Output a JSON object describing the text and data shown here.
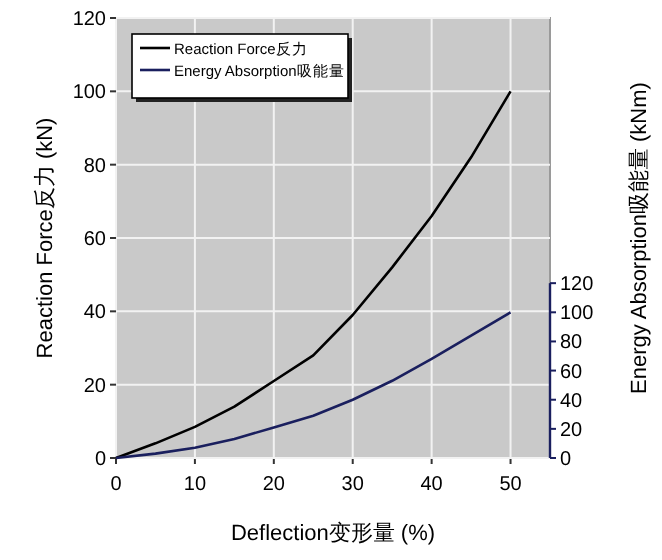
{
  "chart_data": {
    "type": "line",
    "xlabel": "Deflection变形量 (%)",
    "ylabel": "Reaction Force反力 (kN)",
    "y2label": "Energy Absorption吸能量 (kNm)",
    "x": [
      0,
      5,
      10,
      15,
      20,
      25,
      30,
      35,
      40,
      45,
      50
    ],
    "series": [
      {
        "name": "Reaction Force反力",
        "color": "#000000",
        "values": [
          0,
          4,
          8.5,
          14,
          21,
          28,
          39,
          52,
          66,
          82,
          100
        ]
      },
      {
        "name": "Energy Absorption吸能量",
        "color": "#1a1f5e",
        "axis": "y2",
        "values": [
          0,
          3,
          7,
          13,
          21,
          29,
          40,
          53,
          68,
          84,
          100
        ]
      }
    ],
    "xlim": [
      0,
      55
    ],
    "xticks": [
      0,
      10,
      20,
      30,
      40,
      50
    ],
    "ylim": [
      0,
      120
    ],
    "yticks": [
      0,
      20,
      40,
      60,
      80,
      100,
      120
    ],
    "y2lim": [
      0,
      302
    ],
    "y2ticks": [
      0,
      20,
      40,
      60,
      80,
      100,
      120
    ],
    "grid": true,
    "legend": "top left",
    "line_style": "solid",
    "marker": "none"
  }
}
